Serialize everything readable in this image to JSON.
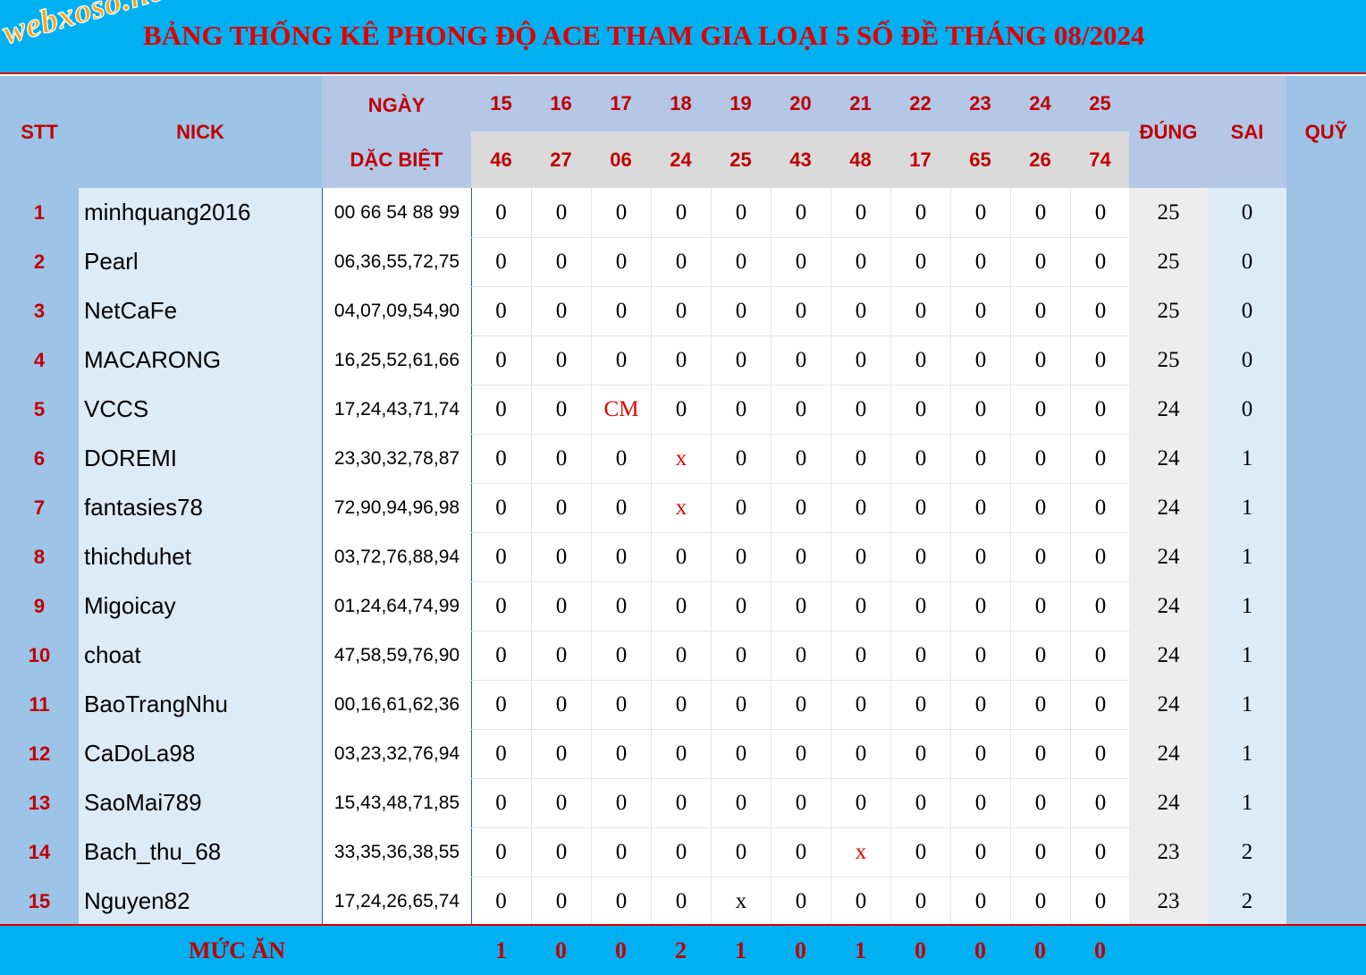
{
  "title": "BẢNG THỐNG KÊ PHONG ĐỘ ACE THAM GIA LOẠI 5 SỐ ĐỀ THÁNG 08/2024",
  "logo": "webxoso.net",
  "headers": {
    "stt": "STT",
    "nick": "NICK",
    "ngay": "NGÀY",
    "dac_biet": "DẶC BIỆT",
    "dung": "ĐÚNG",
    "sai": "SAI",
    "quy": "QUỸ"
  },
  "days": [
    "15",
    "16",
    "17",
    "18",
    "19",
    "20",
    "21",
    "22",
    "23",
    "24",
    "25"
  ],
  "specials": [
    "46",
    "27",
    "06",
    "24",
    "25",
    "43",
    "48",
    "17",
    "65",
    "26",
    "74"
  ],
  "rows": [
    {
      "stt": "1",
      "nick": "minhquang2016",
      "numbers": "00 66 54 88 99",
      "marks": [
        "0",
        "0",
        "0",
        "0",
        "0",
        "0",
        "0",
        "0",
        "0",
        "0",
        "0"
      ],
      "dung": "25",
      "sai": "0"
    },
    {
      "stt": "2",
      "nick": "Pearl",
      "numbers": "06,36,55,72,75",
      "marks": [
        "0",
        "0",
        "0",
        "0",
        "0",
        "0",
        "0",
        "0",
        "0",
        "0",
        "0"
      ],
      "dung": "25",
      "sai": "0"
    },
    {
      "stt": "3",
      "nick": "NetCaFe",
      "numbers": "04,07,09,54,90",
      "marks": [
        "0",
        "0",
        "0",
        "0",
        "0",
        "0",
        "0",
        "0",
        "0",
        "0",
        "0"
      ],
      "dung": "25",
      "sai": "0"
    },
    {
      "stt": "4",
      "nick": "MACARONG",
      "numbers": "16,25,52,61,66",
      "marks": [
        "0",
        "0",
        "0",
        "0",
        "0",
        "0",
        "0",
        "0",
        "0",
        "0",
        "0"
      ],
      "dung": "25",
      "sai": "0"
    },
    {
      "stt": "5",
      "nick": "VCCS",
      "numbers": "17,24,43,71,74",
      "marks": [
        "0",
        "0",
        "CM",
        "0",
        "0",
        "0",
        "0",
        "0",
        "0",
        "0",
        "0"
      ],
      "dung": "24",
      "sai": "0"
    },
    {
      "stt": "6",
      "nick": "DOREMI",
      "numbers": "23,30,32,78,87",
      "marks": [
        "0",
        "0",
        "0",
        "x",
        "0",
        "0",
        "0",
        "0",
        "0",
        "0",
        "0"
      ],
      "dung": "24",
      "sai": "1"
    },
    {
      "stt": "7",
      "nick": "fantasies78",
      "numbers": "72,90,94,96,98",
      "marks": [
        "0",
        "0",
        "0",
        "x",
        "0",
        "0",
        "0",
        "0",
        "0",
        "0",
        "0"
      ],
      "dung": "24",
      "sai": "1"
    },
    {
      "stt": "8",
      "nick": "thichduhet",
      "numbers": "03,72,76,88,94",
      "marks": [
        "0",
        "0",
        "0",
        "0",
        "0",
        "0",
        "0",
        "0",
        "0",
        "0",
        "0"
      ],
      "dung": "24",
      "sai": "1"
    },
    {
      "stt": "9",
      "nick": "Migoicay",
      "numbers": "01,24,64,74,99",
      "marks": [
        "0",
        "0",
        "0",
        "0",
        "0",
        "0",
        "0",
        "0",
        "0",
        "0",
        "0"
      ],
      "dung": "24",
      "sai": "1"
    },
    {
      "stt": "10",
      "nick": "choat",
      "numbers": "47,58,59,76,90",
      "marks": [
        "0",
        "0",
        "0",
        "0",
        "0",
        "0",
        "0",
        "0",
        "0",
        "0",
        "0"
      ],
      "dung": "24",
      "sai": "1"
    },
    {
      "stt": "11",
      "nick": "BaoTrangNhu",
      "numbers": "00,16,61,62,36",
      "marks": [
        "0",
        "0",
        "0",
        "0",
        "0",
        "0",
        "0",
        "0",
        "0",
        "0",
        "0"
      ],
      "dung": "24",
      "sai": "1"
    },
    {
      "stt": "12",
      "nick": "CaDoLa98",
      "numbers": "03,23,32,76,94",
      "marks": [
        "0",
        "0",
        "0",
        "0",
        "0",
        "0",
        "0",
        "0",
        "0",
        "0",
        "0"
      ],
      "dung": "24",
      "sai": "1"
    },
    {
      "stt": "13",
      "nick": "SaoMai789",
      "numbers": "15,43,48,71,85",
      "marks": [
        "0",
        "0",
        "0",
        "0",
        "0",
        "0",
        "0",
        "0",
        "0",
        "0",
        "0"
      ],
      "dung": "24",
      "sai": "1"
    },
    {
      "stt": "14",
      "nick": "Bach_thu_68",
      "numbers": "33,35,36,38,55",
      "marks": [
        "0",
        "0",
        "0",
        "0",
        "0",
        "0",
        "x",
        "0",
        "0",
        "0",
        "0"
      ],
      "dung": "23",
      "sai": "2"
    },
    {
      "stt": "15",
      "nick": "Nguyen82",
      "numbers": "17,24,26,65,74",
      "marks": [
        "0",
        "0",
        "0",
        "0",
        "x",
        "0",
        "0",
        "0",
        "0",
        "0",
        "0"
      ],
      "dung": "23",
      "sai": "2"
    }
  ],
  "footer": {
    "label": "MỨC ĂN",
    "values": [
      "1",
      "0",
      "0",
      "2",
      "1",
      "0",
      "1",
      "0",
      "0",
      "0",
      "0"
    ]
  },
  "colors": {
    "title_bg": "#00b0f0",
    "title_text": "#e00000",
    "header_blue": "#9dc3e6",
    "header_lavender": "#b4c7e7",
    "header_gray": "#dadada",
    "nick_bg": "#ddebf7",
    "stats_bg": "#ededed",
    "quy_bg": "#9dc3e6",
    "miss_mark": "#e00000"
  }
}
